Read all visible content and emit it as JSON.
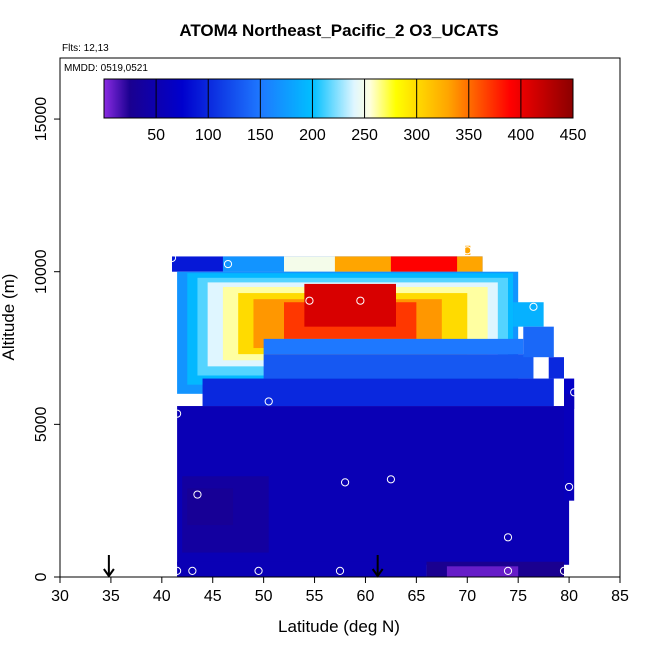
{
  "chart_data": {
    "type": "heatmap",
    "title": "ATOM4 Northeast_Pacific_2 O3_UCATS",
    "annotations": [
      "Flts: 12,13",
      "MMDD: 0519,0521"
    ],
    "xlabel": "Latitude (deg N)",
    "ylabel": "Altitude (m)",
    "xlim": [
      30,
      85
    ],
    "ylim": [
      0,
      17000
    ],
    "x_ticks": [
      30,
      35,
      40,
      45,
      50,
      55,
      60,
      65,
      70,
      75,
      80,
      85
    ],
    "y_ticks": [
      0,
      5000,
      10000,
      15000
    ],
    "grid": false,
    "colorbar": {
      "placement": "top-inside",
      "min": 0,
      "max": 450,
      "ticks": [
        50,
        100,
        150,
        200,
        250,
        300,
        350,
        400,
        450
      ],
      "stops": [
        {
          "value": 0,
          "color": "#8a2be2"
        },
        {
          "value": 25,
          "color": "#1a0090"
        },
        {
          "value": 75,
          "color": "#0000cd"
        },
        {
          "value": 150,
          "color": "#1e78ff"
        },
        {
          "value": 200,
          "color": "#00bfff"
        },
        {
          "value": 240,
          "color": "#dff6ff"
        },
        {
          "value": 255,
          "color": "#ffffe0"
        },
        {
          "value": 280,
          "color": "#ffff00"
        },
        {
          "value": 330,
          "color": "#ffa500"
        },
        {
          "value": 390,
          "color": "#ff0000"
        },
        {
          "value": 450,
          "color": "#8b0000"
        }
      ]
    },
    "cells": [
      {
        "lat": [
          41.0,
          71.5
        ],
        "alt": [
          10000,
          10500
        ],
        "value": 90
      },
      {
        "lat": [
          46.0,
          71.5
        ],
        "alt": [
          10000,
          10500
        ],
        "value": 170
      },
      {
        "lat": [
          52.0,
          67.0
        ],
        "alt": [
          10000,
          10500
        ],
        "value": 250
      },
      {
        "lat": [
          57.0,
          71.5
        ],
        "alt": [
          10000,
          10500
        ],
        "value": 330
      },
      {
        "lat": [
          62.5,
          69.0
        ],
        "alt": [
          10000,
          10500
        ],
        "value": 390
      },
      {
        "lat": [
          69.8,
          70.3
        ],
        "alt": [
          10550,
          10850
        ],
        "value": 330
      },
      {
        "lat": [
          41.5,
          75.0
        ],
        "alt": [
          6000,
          10000
        ],
        "value": 170
      },
      {
        "lat": [
          42.5,
          74.5
        ],
        "alt": [
          6300,
          9950
        ],
        "value": 195
      },
      {
        "lat": [
          43.5,
          74.0
        ],
        "alt": [
          6600,
          9800
        ],
        "value": 215
      },
      {
        "lat": [
          44.5,
          73.0
        ],
        "alt": [
          6900,
          9650
        ],
        "value": 240
      },
      {
        "lat": [
          46.0,
          72.0
        ],
        "alt": [
          7100,
          9500
        ],
        "value": 262
      },
      {
        "lat": [
          47.5,
          70.0
        ],
        "alt": [
          7300,
          9300
        ],
        "value": 300
      },
      {
        "lat": [
          49.0,
          67.5
        ],
        "alt": [
          7500,
          9100
        ],
        "value": 335
      },
      {
        "lat": [
          52.0,
          65.0
        ],
        "alt": [
          7800,
          9000
        ],
        "value": 370
      },
      {
        "lat": [
          54.0,
          63.0
        ],
        "alt": [
          8200,
          9600
        ],
        "value": 410
      },
      {
        "lat": [
          50.0,
          75.5
        ],
        "alt": [
          7300,
          7800
        ],
        "value": 150
      },
      {
        "lat": [
          50.0,
          76.5
        ],
        "alt": [
          6500,
          7300
        ],
        "value": 130
      },
      {
        "lat": [
          44.0,
          78.5
        ],
        "alt": [
          5600,
          6500
        ],
        "value": 100
      },
      {
        "lat": [
          74.5,
          77.5
        ],
        "alt": [
          8200,
          9000
        ],
        "value": 190
      },
      {
        "lat": [
          75.5,
          78.5
        ],
        "alt": [
          7200,
          8200
        ],
        "value": 140
      },
      {
        "lat": [
          78.0,
          79.5
        ],
        "alt": [
          6500,
          7200
        ],
        "value": 100
      },
      {
        "lat": [
          79.5,
          80.5
        ],
        "alt": [
          5500,
          6500
        ],
        "value": 70
      },
      {
        "lat": [
          41.5,
          80.0
        ],
        "alt": [
          400,
          5600
        ],
        "value": 55
      },
      {
        "lat": [
          79.5,
          80.5
        ],
        "alt": [
          2500,
          6000
        ],
        "value": 60
      },
      {
        "lat": [
          42.0,
          50.5
        ],
        "alt": [
          800,
          3300
        ],
        "value": 38
      },
      {
        "lat": [
          42.5,
          47.0
        ],
        "alt": [
          1700,
          2900
        ],
        "value": 30
      },
      {
        "lat": [
          41.5,
          66.0
        ],
        "alt": [
          0,
          500
        ],
        "value": 55
      },
      {
        "lat": [
          66.0,
          79.5
        ],
        "alt": [
          0,
          500
        ],
        "value": 25
      },
      {
        "lat": [
          68.0,
          75.0
        ],
        "alt": [
          0,
          350
        ],
        "value": 8
      }
    ],
    "sample_points": [
      {
        "lat": 41.0,
        "alt": 10450
      },
      {
        "lat": 46.5,
        "alt": 10250
      },
      {
        "lat": 54.5,
        "alt": 9050
      },
      {
        "lat": 59.5,
        "alt": 9050
      },
      {
        "lat": 70.0,
        "alt": 10700
      },
      {
        "lat": 76.5,
        "alt": 8850
      },
      {
        "lat": 80.5,
        "alt": 6050
      },
      {
        "lat": 41.5,
        "alt": 5350
      },
      {
        "lat": 50.5,
        "alt": 5750
      },
      {
        "lat": 43.5,
        "alt": 2700
      },
      {
        "lat": 58.0,
        "alt": 3100
      },
      {
        "lat": 62.5,
        "alt": 3200
      },
      {
        "lat": 80.0,
        "alt": 2950
      },
      {
        "lat": 74.0,
        "alt": 1300
      },
      {
        "lat": 41.5,
        "alt": 200
      },
      {
        "lat": 43.0,
        "alt": 200
      },
      {
        "lat": 49.5,
        "alt": 200
      },
      {
        "lat": 57.5,
        "alt": 200
      },
      {
        "lat": 74.0,
        "alt": 200
      },
      {
        "lat": 79.5,
        "alt": 200
      }
    ],
    "markers": [
      {
        "lat": 34.8,
        "type": "arrow-down"
      },
      {
        "lat": 61.2,
        "type": "arrow-down"
      }
    ]
  }
}
